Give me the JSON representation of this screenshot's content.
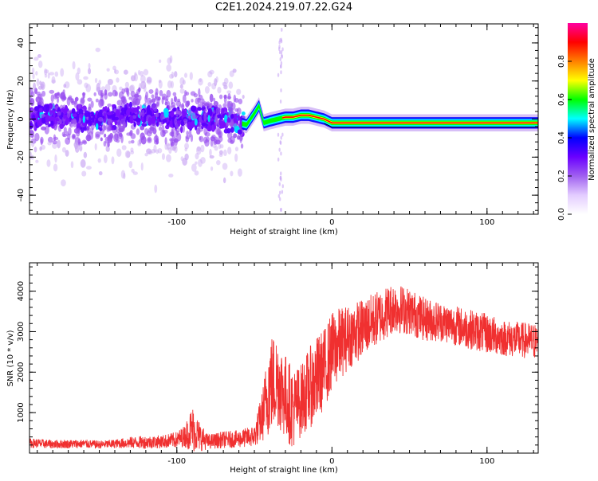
{
  "page_title": "C2E1.2024.219.07.22.G24",
  "chart_data": [
    {
      "type": "heatmap",
      "xlabel": "Height of straight line (km)",
      "ylabel": "Frequency (Hz)",
      "xlim": [
        -195,
        133
      ],
      "ylim": [
        -50,
        50
      ],
      "x_ticks": [
        -100,
        0,
        100
      ],
      "x_tick_labels": [
        "-100",
        "0",
        "100"
      ],
      "y_ticks": [
        -40,
        -20,
        0,
        20,
        40
      ],
      "y_tick_labels": [
        "-40",
        "-20",
        "0",
        "20",
        "40"
      ],
      "colorbar": {
        "label": "Normalized spectral amplitude",
        "range": [
          0,
          1
        ],
        "ticks": [
          0.0,
          0.2,
          0.4,
          0.6,
          0.8
        ],
        "tick_labels": [
          "0.0",
          "0.2",
          "0.4",
          "0.6",
          "0.8"
        ],
        "colormap": [
          "#ffffff",
          "#e3ccff",
          "#a060f0",
          "#6a00ff",
          "#0000ff",
          "#00ffff",
          "#00ff00",
          "#ffff00",
          "#ff8000",
          "#ff0000",
          "#ff00a0"
        ]
      },
      "ridge": {
        "x": [
          -195,
          -170,
          -150,
          -130,
          -110,
          -90,
          -75,
          -60,
          -55,
          -50,
          -47,
          -44,
          -40,
          -35,
          -30,
          -25,
          -20,
          -15,
          -10,
          -5,
          0,
          10,
          20,
          40,
          60,
          80,
          90,
          100,
          120,
          133
        ],
        "freq": [
          2,
          1,
          0,
          2,
          1,
          0,
          1,
          -2,
          -3,
          3,
          7,
          -2,
          -1,
          0,
          1,
          1,
          2,
          2,
          1,
          0,
          -2,
          -2,
          -2,
          -2,
          -2,
          -2,
          -2,
          -2,
          -2,
          -2
        ]
      },
      "grid": false
    },
    {
      "type": "line",
      "xlabel": "Height of straight line (km)",
      "ylabel": "SNR (10 * v/v)",
      "xlim": [
        -195,
        133
      ],
      "ylim": [
        0,
        4700
      ],
      "x_ticks": [
        -100,
        0,
        100
      ],
      "x_tick_labels": [
        "-100",
        "0",
        "100"
      ],
      "y_ticks": [
        1000,
        2000,
        3000,
        4000
      ],
      "y_tick_labels": [
        "1000",
        "2000",
        "3000",
        "4000"
      ],
      "series": [
        {
          "color": "#f03030",
          "envelope_x": [
            -195,
            -180,
            -160,
            -150,
            -140,
            -130,
            -120,
            -110,
            -100,
            -95,
            -90,
            -85,
            -80,
            -70,
            -60,
            -50,
            -45,
            -40,
            -35,
            -30,
            -25,
            -20,
            -15,
            -10,
            -5,
            0,
            5,
            10,
            20,
            30,
            40,
            50,
            60,
            70,
            80,
            90,
            100,
            110,
            120,
            133
          ],
          "mean": [
            250,
            220,
            230,
            210,
            230,
            260,
            270,
            280,
            330,
            420,
            600,
            400,
            280,
            330,
            350,
            420,
            900,
            1700,
            1800,
            1400,
            1100,
            1300,
            1600,
            1800,
            2100,
            2500,
            2700,
            2850,
            3100,
            3350,
            3600,
            3500,
            3300,
            3250,
            3150,
            3050,
            2950,
            2850,
            2800,
            2750
          ],
          "spread": [
            130,
            120,
            120,
            110,
            120,
            160,
            180,
            180,
            220,
            300,
            650,
            400,
            200,
            230,
            240,
            300,
            700,
            1400,
            1300,
            1200,
            1100,
            1000,
            1100,
            1200,
            1100,
            1100,
            1000,
            900,
            800,
            750,
            700,
            650,
            600,
            550,
            550,
            550,
            550,
            500,
            500,
            500
          ]
        }
      ],
      "grid": false
    }
  ]
}
